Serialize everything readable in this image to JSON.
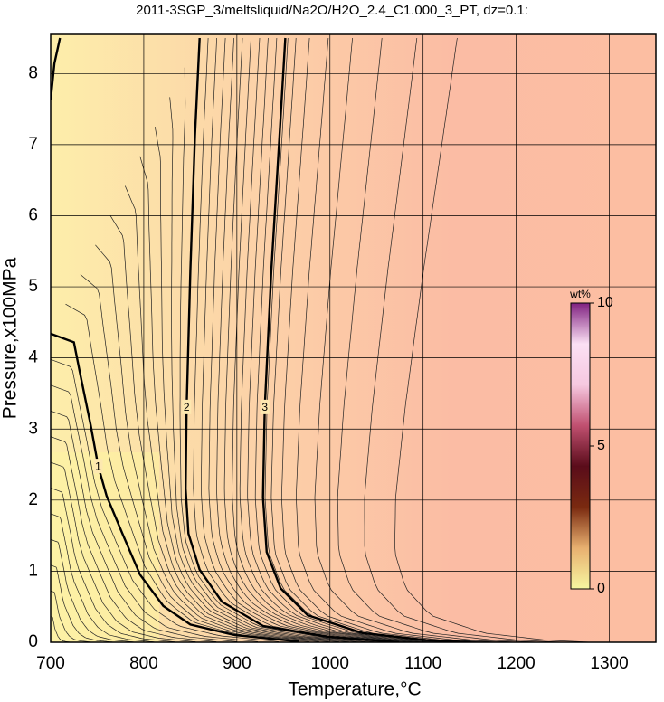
{
  "chart_data": {
    "type": "contour",
    "title": "2011-3SGP_3/meltsliquid/Na2O/H2O_2.4_C1.000_3_PT, dz=0.1:",
    "xlabel": "Temperature,°C",
    "ylabel": "Pressure,x100MPa",
    "xlim": [
      700,
      1350
    ],
    "ylim": [
      0,
      8.5
    ],
    "xticks": [
      700,
      800,
      900,
      1000,
      1100,
      1200,
      1300
    ],
    "yticks": [
      0,
      1,
      2,
      3,
      4,
      5,
      6,
      7,
      8
    ],
    "grid": true,
    "contours": [
      {
        "level": 1,
        "x": [
          700,
          725,
          731,
          743,
          751,
          760,
          777,
          796,
          821,
          850,
          898,
          967
        ],
        "y": [
          4.34,
          4.22,
          3.82,
          3.05,
          2.48,
          2.06,
          1.53,
          0.95,
          0.51,
          0.25,
          0.1,
          0.01
        ]
      },
      {
        "level": 2,
        "x": [
          860,
          855,
          850,
          846,
          845,
          848,
          860,
          884,
          928,
          996,
          1074,
          null,
          700,
          704,
          710
        ],
        "y": [
          8.5,
          7.12,
          5.22,
          3.31,
          2.16,
          1.53,
          1.02,
          0.57,
          0.23,
          0.08,
          0,
          null,
          7.63,
          8.14,
          8.5
        ]
      },
      {
        "level": 3,
        "x": [
          952,
          947,
          937,
          930,
          928,
          932,
          947,
          976,
          1035,
          1103,
          1151
        ],
        "y": [
          8.5,
          7.38,
          5.22,
          3.31,
          2.04,
          1.27,
          0.76,
          0.38,
          0.13,
          0.03,
          0
        ]
      }
    ],
    "background_colors": [
      "#fdeeaa",
      "#fcd2a8",
      "#fbbca4",
      "#fcbea2"
    ],
    "colorbar": {
      "label": "wt%",
      "lim": [
        0,
        10
      ],
      "ticks": [
        0,
        5,
        10
      ],
      "colors": [
        "#f6f6a0",
        "#e8b070",
        "#7a2a10",
        "#5a0c1a",
        "#c05070",
        "#f6c8e0",
        "#fbe0f4",
        "#802080"
      ]
    }
  }
}
